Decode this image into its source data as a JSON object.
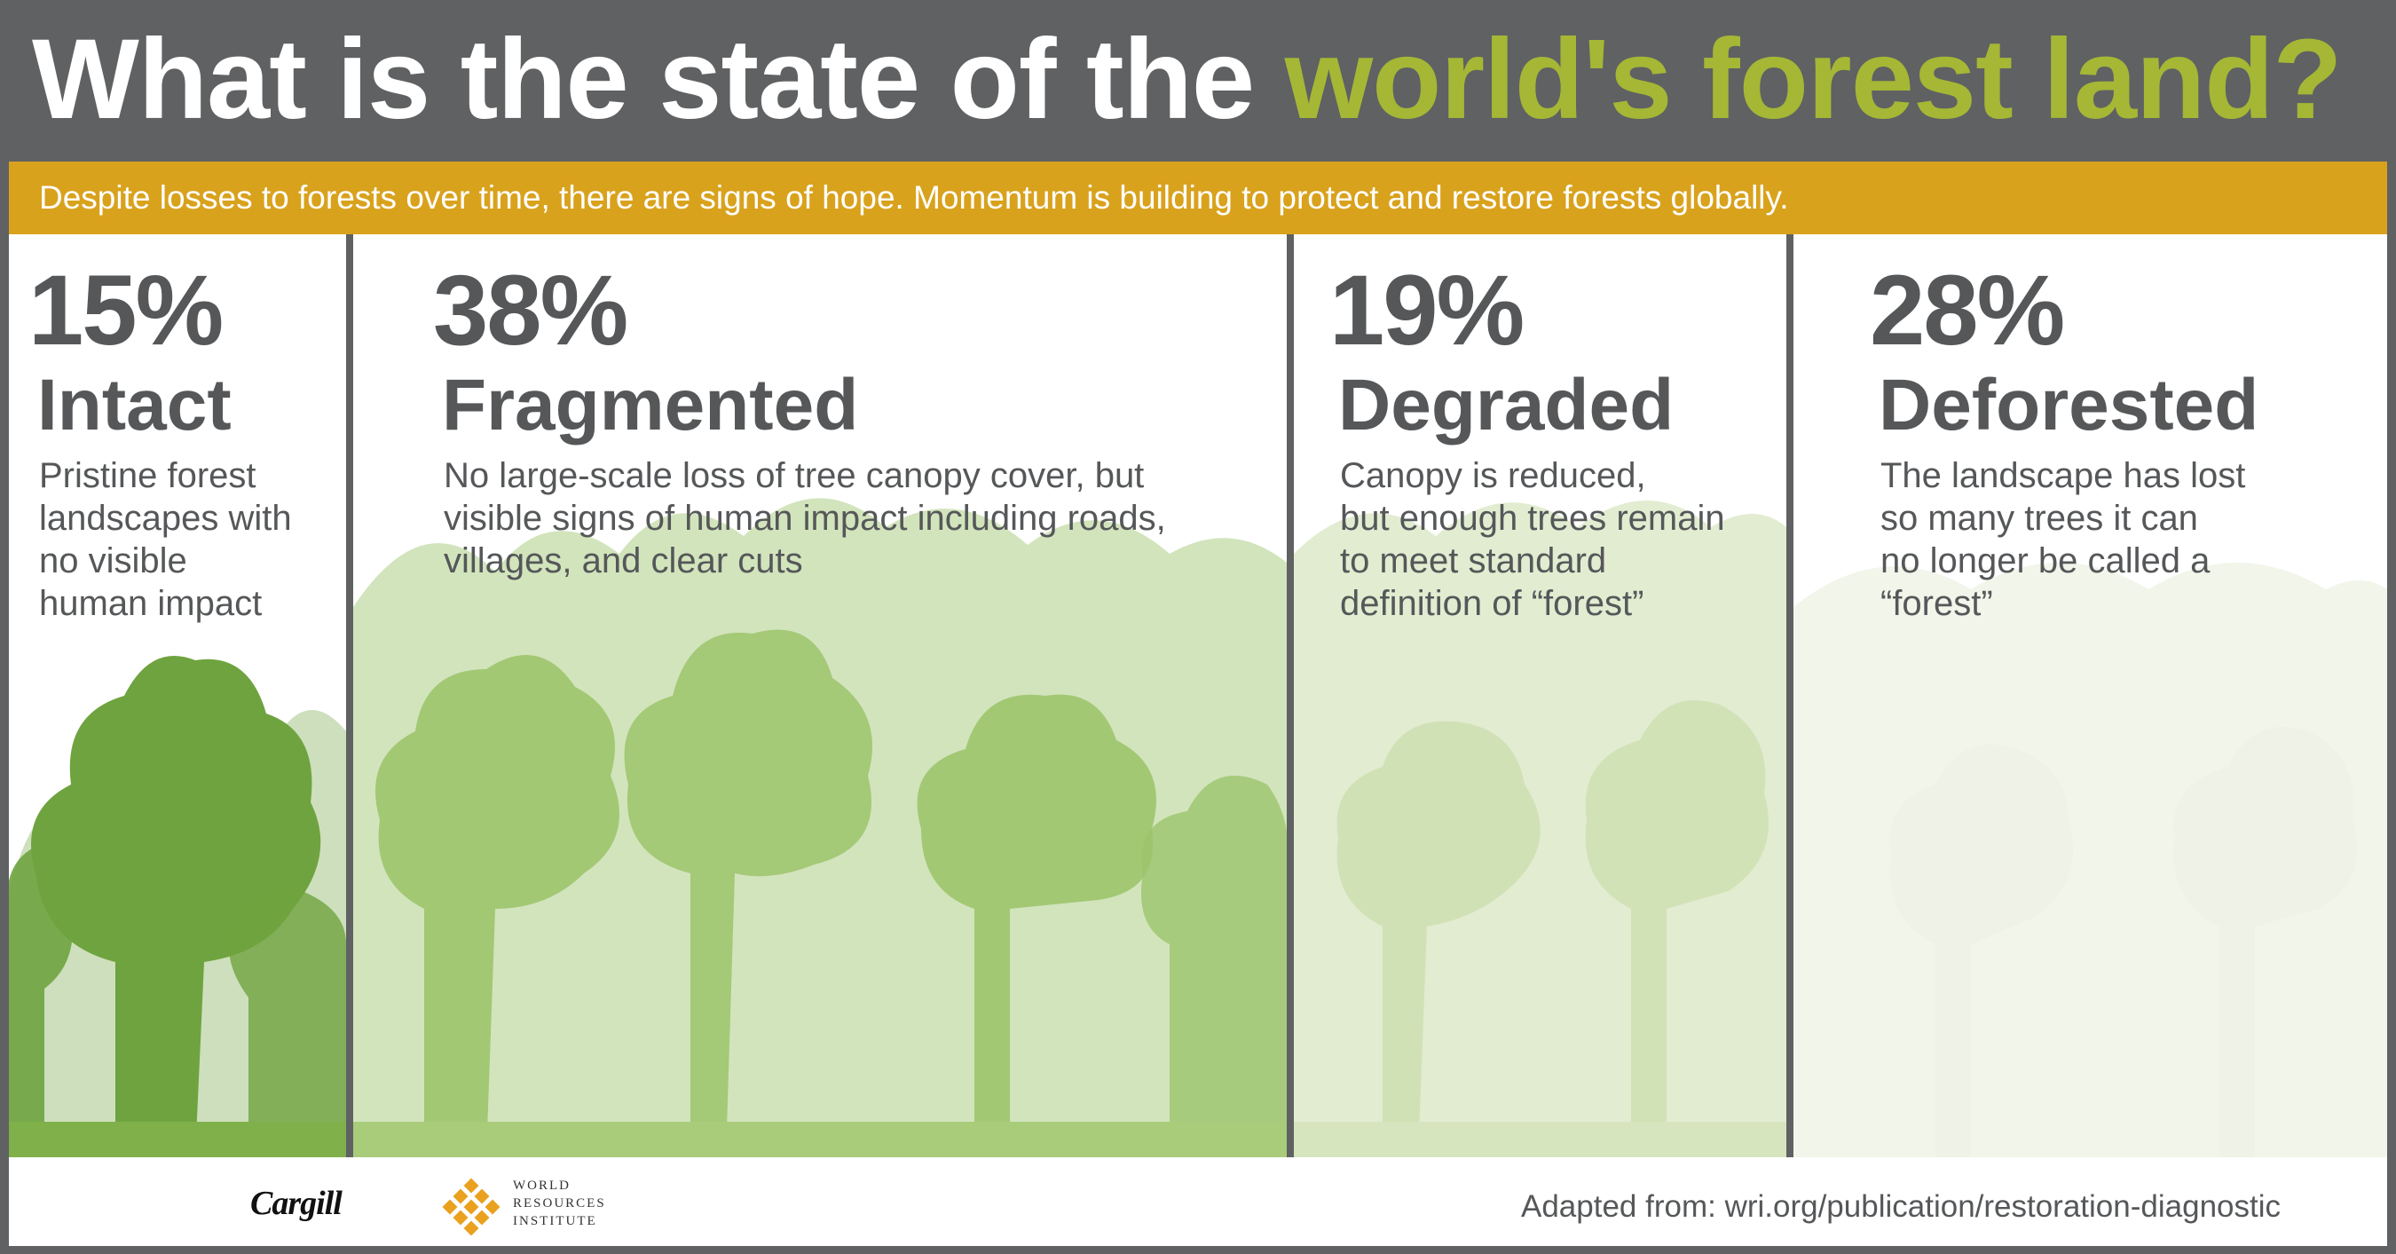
{
  "header": {
    "title_main": "What is the state of the ",
    "title_accent": "world's forest land?",
    "subtitle": "Despite losses to forests over time, there are signs of hope. Momentum is building to protect and restore forests globally."
  },
  "panels": [
    {
      "percent": "15%",
      "label": "Intact",
      "description": "Pristine forest\nlandscapes with\nno visible\nhuman impact",
      "tree_color": "#6fa33f",
      "tree_density": "full"
    },
    {
      "percent": "38%",
      "label": "Fragmented",
      "description": "No large-scale loss of tree canopy cover, but\nvisible signs of human impact including roads,\nvillages, and clear cuts",
      "tree_color": "#9cc46b",
      "tree_density": "medium"
    },
    {
      "percent": "19%",
      "label": "Degraded",
      "description": "Canopy is reduced,\nbut enough trees remain\nto meet standard\ndefinition of “forest”",
      "tree_color": "#cfe0b3",
      "tree_density": "sparse"
    },
    {
      "percent": "28%",
      "label": "Deforested",
      "description": "The landscape has lost\nso many trees it can\nno longer be called a\n“forest”",
      "tree_color": "#f1f4ea",
      "tree_density": "faint"
    }
  ],
  "footer": {
    "cargill_logo": "Cargill",
    "wri_logo_line1": "WORLD",
    "wri_logo_line2": "RESOURCES",
    "wri_logo_line3": "INSTITUTE",
    "source": "Adapted from: wri.org/publication/restoration-diagnostic"
  },
  "colors": {
    "background": "#5f6163",
    "accent_green": "#a5b735",
    "banner_gold": "#d9a21d",
    "text_gray": "#555759"
  }
}
